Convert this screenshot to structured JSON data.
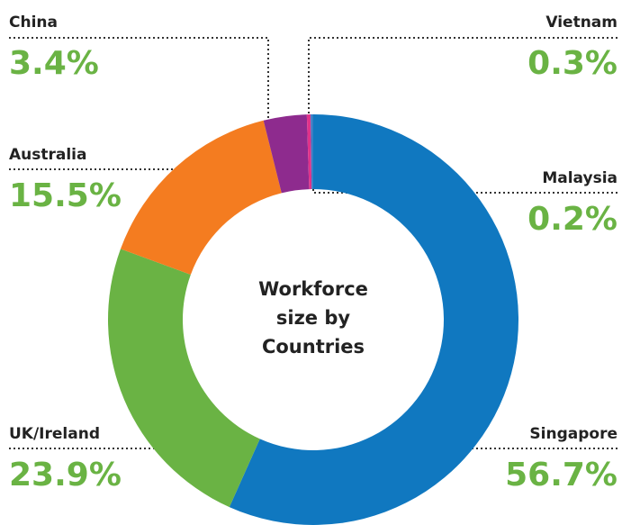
{
  "chart_data": {
    "type": "donut",
    "title": "Workforce size by Countries",
    "categories": [
      "Singapore",
      "UK/Ireland",
      "Australia",
      "China",
      "Vietnam",
      "Malaysia"
    ],
    "values": [
      56.7,
      23.9,
      15.5,
      3.4,
      0.3,
      0.2
    ],
    "value_labels": [
      "56.7%",
      "23.9%",
      "15.5%",
      "3.4%",
      "0.3%",
      "0.2%"
    ],
    "colors": [
      "#1078c0",
      "#6ab344",
      "#f47c20",
      "#8e2b8e",
      "#e0338a",
      "#3a7fc4"
    ],
    "label_color": "#6ab344"
  }
}
